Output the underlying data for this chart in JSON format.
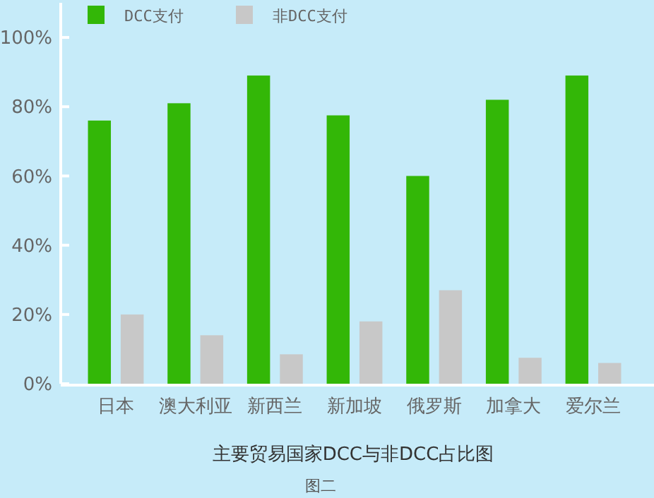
{
  "chart_data": {
    "type": "bar",
    "xlabel": "主要贸易国家DCC与非DCC占比图",
    "annotations": [
      "图二"
    ],
    "categories": [
      "日本",
      "澳大利亚",
      "新西兰",
      "新加坡",
      "俄罗斯",
      "加拿大",
      "爱尔兰"
    ],
    "series": [
      {
        "name": "DCC支付",
        "color": "#33b707",
        "values": [
          76,
          81,
          89,
          77.5,
          60,
          82,
          89
        ]
      },
      {
        "name": "非DCC支付",
        "color": "#c8c8c8",
        "values": [
          20,
          14,
          8.5,
          18,
          27,
          7.5,
          6
        ]
      }
    ],
    "ylim": [
      0,
      110
    ],
    "yticks": [
      {
        "value": 0,
        "label": "0%"
      },
      {
        "value": 20,
        "label": "20%"
      },
      {
        "value": 40,
        "label": "40%"
      },
      {
        "value": 60,
        "label": "60%"
      },
      {
        "value": 80,
        "label": "80%"
      },
      {
        "value": 100,
        "label": "100%"
      }
    ],
    "grid": false,
    "legend": "top left"
  }
}
